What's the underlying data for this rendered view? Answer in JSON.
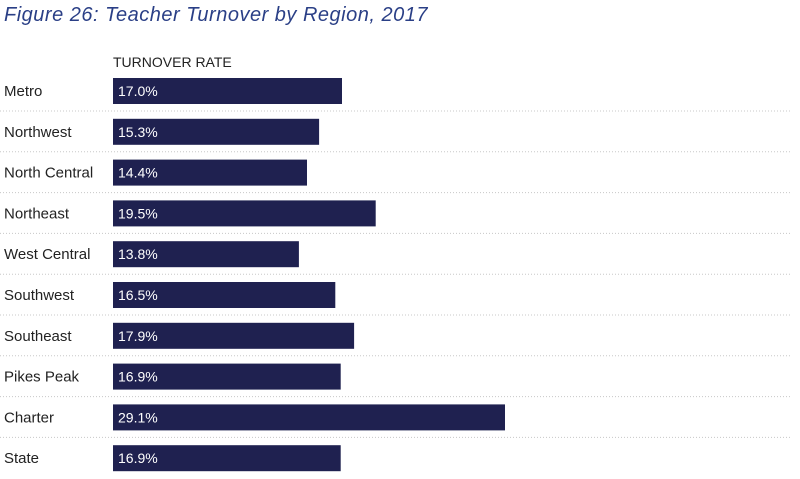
{
  "title": "Figure 26: Teacher Turnover by Region, 2017",
  "chart_data": {
    "type": "bar",
    "orientation": "horizontal",
    "title": "Figure 26: Teacher Turnover by Region, 2017",
    "column_header": "TURNOVER RATE",
    "categories": [
      "Metro",
      "Northwest",
      "North Central",
      "Northeast",
      "West Central",
      "Southwest",
      "Southeast",
      "Pikes Peak",
      "Charter",
      "State"
    ],
    "values": [
      17.0,
      15.3,
      14.4,
      19.5,
      13.8,
      16.5,
      17.9,
      16.9,
      29.1,
      16.9
    ],
    "labels": [
      "17.0%",
      "15.3%",
      "14.4%",
      "19.5%",
      "13.8%",
      "16.5%",
      "17.9%",
      "16.9%",
      "29.1%",
      "16.9%"
    ],
    "xlim": [
      0,
      30
    ],
    "unit": "%",
    "grid": false,
    "row_separators": "dotted",
    "colors": {
      "bar": "#1f2150",
      "bar_label": "#ffffff",
      "category_text": "#222222",
      "header_text": "#222222",
      "title": "#2a3f86",
      "separator": "#c8c8c8"
    }
  }
}
